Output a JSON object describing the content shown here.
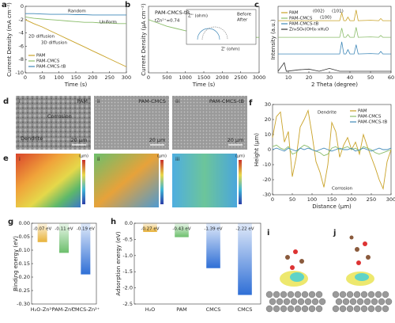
{
  "chart_data": [
    {
      "type": "line",
      "label": "a",
      "xlabel": "Time (s)",
      "ylabel": "Current Density (mA cm⁻²)",
      "x": [
        0,
        25,
        50,
        75,
        100,
        125,
        150,
        175,
        200,
        225,
        250,
        275,
        300
      ],
      "series": [
        {
          "name": "PAM",
          "color": "#c9a227",
          "values": [
            -2,
            -2.6,
            -3.1,
            -3.7,
            -4.3,
            -4.9,
            -5.5,
            -6.1,
            -6.7,
            -7.3,
            -7.9,
            -8.5,
            -9.1
          ]
        },
        {
          "name": "PAM-CMCS",
          "color": "#8bbd6b",
          "values": [
            -1.6,
            -1.8,
            -1.9,
            -2.0,
            -2.1,
            -2.2,
            -2.3,
            -2.4,
            -2.4,
            -2.5,
            -2.5,
            -2.6,
            -2.6
          ]
        },
        {
          "name": "PAM-CMCS-tB",
          "color": "#3f88b8",
          "values": [
            -1.1,
            -1.1,
            -1.15,
            -1.2,
            -1.2,
            -1.2,
            -1.25,
            -1.25,
            -1.3,
            -1.3,
            -1.3,
            -1.3,
            -1.3
          ]
        }
      ],
      "xlim": [
        0,
        300
      ],
      "xticks": [
        0,
        50,
        100,
        150,
        200,
        250,
        300
      ],
      "ylim": [
        -10,
        0
      ],
      "yticks": [
        0,
        -2,
        -4,
        -6,
        -8,
        -10
      ],
      "legend": "lower-left",
      "annotations": [
        "Random",
        "Uniform",
        "2D diffusion",
        "3D diffusion"
      ]
    },
    {
      "type": "line",
      "label": "b",
      "xlabel": "Time (s)",
      "ylabel": "Current Density (μA cm⁻²)",
      "x": [
        0,
        250,
        500,
        750,
        1000,
        1250,
        1500,
        1750,
        2000,
        2250,
        2500,
        2750,
        3000
      ],
      "series": [
        {
          "name": "PAM-CMCS-tB",
          "color": "#8bbd6b",
          "values": [
            48,
            45,
            42,
            40,
            38,
            37,
            36,
            35,
            34,
            33,
            33,
            32,
            32
          ]
        }
      ],
      "xlim": [
        0,
        3000
      ],
      "xticks": [
        0,
        500,
        1000,
        1500,
        2000,
        2500,
        3000
      ],
      "ylim": [
        0,
        60
      ],
      "annotations": [
        "tZn²⁺=0.74",
        "Z' (ohm)",
        "Z'' (ohm)",
        "Before",
        "After"
      ]
    },
    {
      "type": "waterfall",
      "label": "c",
      "xlabel": "2 Theta (degree)",
      "ylabel": "Intensity (a.u.)",
      "x": [
        5,
        8,
        9,
        15,
        20,
        25,
        30,
        35,
        36,
        37,
        38,
        39,
        40,
        42,
        43,
        44,
        50,
        54,
        55,
        56,
        60
      ],
      "series": [
        {
          "name": "PAM",
          "color": "#c9a227",
          "values": [
            5,
            5,
            5,
            5,
            5,
            5,
            5,
            5,
            60,
            5,
            5,
            30,
            5,
            5,
            80,
            5,
            8,
            5,
            20,
            5,
            5
          ]
        },
        {
          "name": "PAM-CMCS",
          "color": "#8bbd6b",
          "values": [
            5,
            5,
            5,
            5,
            5,
            5,
            5,
            5,
            70,
            5,
            5,
            25,
            5,
            5,
            75,
            5,
            8,
            5,
            18,
            5,
            5
          ]
        },
        {
          "name": "PAM-CMCS-tB",
          "color": "#3f88b8",
          "values": [
            5,
            5,
            5,
            5,
            5,
            5,
            5,
            5,
            90,
            5,
            5,
            35,
            5,
            5,
            70,
            5,
            8,
            5,
            22,
            5,
            5
          ]
        },
        {
          "name": "Zn₄SO₄(OH)₆·xH₂O",
          "color": "#333333",
          "values": [
            0,
            60,
            0,
            10,
            15,
            0,
            20,
            0,
            0,
            0,
            0,
            0,
            0,
            0,
            0,
            0,
            0,
            0,
            0,
            0,
            0
          ]
        }
      ],
      "xlim": [
        5,
        60
      ],
      "xticks": [
        10,
        20,
        30,
        40,
        50,
        60
      ],
      "ylim": [
        0,
        100
      ],
      "legend": "upper-left",
      "annotations": [
        "(002)",
        "(100)",
        "(101)"
      ]
    },
    {
      "type": "line",
      "label": "f",
      "xlabel": "Distance (μm)",
      "ylabel": "Height (μm)",
      "x": [
        0,
        10,
        20,
        30,
        40,
        50,
        60,
        70,
        80,
        90,
        100,
        110,
        120,
        130,
        140,
        150,
        160,
        170,
        180,
        190,
        200,
        210,
        220,
        230,
        240,
        250,
        260,
        270,
        280,
        290,
        300
      ],
      "series": [
        {
          "name": "PAM",
          "color": "#c9a227",
          "values": [
            8,
            22,
            25,
            5,
            12,
            -18,
            -5,
            15,
            20,
            26,
            10,
            -8,
            -15,
            -25,
            -10,
            18,
            12,
            -5,
            3,
            8,
            0,
            5,
            -3,
            10,
            2,
            -5,
            -12,
            -20,
            -26,
            -8,
            0
          ]
        },
        {
          "name": "PAM-CMCS",
          "color": "#8bbd6b",
          "values": [
            2,
            3,
            1,
            0,
            2,
            -3,
            -2,
            1,
            3,
            2,
            0,
            -1,
            -2,
            -4,
            -3,
            1,
            2,
            0,
            1,
            2,
            0,
            1,
            -1,
            2,
            1,
            0,
            -2,
            -3,
            -2,
            -1,
            0
          ]
        },
        {
          "name": "PAM-CMCS-tB",
          "color": "#3f88b8",
          "values": [
            0,
            1,
            0,
            -1,
            1,
            0,
            -1,
            1,
            0,
            1,
            0,
            -1,
            0,
            1,
            0,
            -1,
            0,
            1,
            0,
            0,
            1,
            -1,
            0,
            1,
            0,
            -1,
            0,
            1,
            0,
            0,
            1
          ]
        }
      ],
      "xlim": [
        0,
        300
      ],
      "xticks": [
        0,
        50,
        100,
        150,
        200,
        250,
        300
      ],
      "ylim": [
        -30,
        30
      ],
      "yticks": [
        -30,
        -20,
        -10,
        0,
        10,
        20,
        30
      ],
      "legend": "upper-right",
      "annotations": [
        "Dendrite",
        "Corrosion"
      ]
    },
    {
      "type": "bar",
      "label": "g",
      "ylabel": "Binding energy (eV)",
      "categories": [
        "H₂O-Zn²⁺",
        "PAM-Zn²⁺",
        "CMCS-Zn²⁺"
      ],
      "values": [
        -0.07,
        -0.11,
        -0.19
      ],
      "value_labels": [
        "-0.07 eV",
        "-0.11 eV",
        "-0.19 eV"
      ],
      "colors": [
        "#e8b23a",
        "#6cbf6c",
        "#2f6fd6"
      ],
      "ylim": [
        -0.3,
        0
      ],
      "yticks": [
        {
          "value": 0,
          "label": "0.00"
        },
        -0.05,
        {
          "value": -0.1,
          "label": "-0.10"
        },
        -0.15,
        {
          "value": -0.2,
          "label": "-0.20"
        },
        -0.25,
        {
          "value": -0.3,
          "label": "-0.30"
        }
      ]
    },
    {
      "type": "bar",
      "label": "h",
      "ylabel": "Adsorption energy (eV)",
      "categories": [
        "H₂O",
        "PAM",
        "CMCS",
        "CMCS"
      ],
      "values": [
        -0.27,
        -0.43,
        -1.39,
        -2.22
      ],
      "value_labels": [
        "-0.27 eV",
        "-0.43 eV",
        "-1.39 eV",
        "-2.22 eV"
      ],
      "colors": [
        "#e8b23a",
        "#6cbf6c",
        "#2f6fd6",
        "#2f6fd6"
      ],
      "ylim": [
        -2.5,
        0
      ],
      "yticks": [
        {
          "value": 0,
          "label": "0.0"
        },
        -0.5,
        {
          "value": -1,
          "label": "-1.0"
        },
        -1.5,
        {
          "value": -2,
          "label": "-2.0"
        },
        -2.5
      ]
    }
  ],
  "image_panels": {
    "d": {
      "label": "d",
      "panels": [
        {
          "index": "i",
          "name": "PAM"
        },
        {
          "index": "ii",
          "name": "PAM-CMCS"
        },
        {
          "index": "iii",
          "name": "PAM-CMCS-tB"
        }
      ],
      "annotations": [
        "Corrosion",
        "Dendrite"
      ],
      "scale_bar": "20 μm"
    },
    "e": {
      "label": "e",
      "panels": [
        "i",
        "ii",
        "iii"
      ],
      "unit": "(μm)"
    },
    "i": {
      "label": "i"
    },
    "j": {
      "label": "j"
    }
  }
}
